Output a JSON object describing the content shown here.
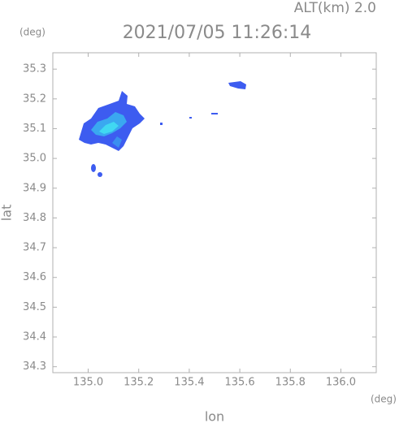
{
  "chart_data": {
    "type": "map",
    "annotation": "ALT(km) 2.0",
    "title": "2021/07/05 11:26:14",
    "x_label": "lon",
    "x_unit": "(deg)",
    "y_label": "lat",
    "y_unit": "(deg)",
    "xlim": [
      134.86,
      136.14
    ],
    "ylim": [
      34.28,
      35.355
    ],
    "xticks": [
      {
        "value": 135.0,
        "label": "135.0"
      },
      135.2,
      135.4,
      135.6,
      135.8,
      {
        "value": 136.0,
        "label": "136.0"
      }
    ],
    "yticks": [
      34.3,
      34.4,
      34.5,
      34.6,
      34.7,
      34.8,
      34.9,
      {
        "value": 35.0,
        "label": "35.0"
      },
      35.1,
      35.2,
      35.3
    ],
    "grid": false
  }
}
